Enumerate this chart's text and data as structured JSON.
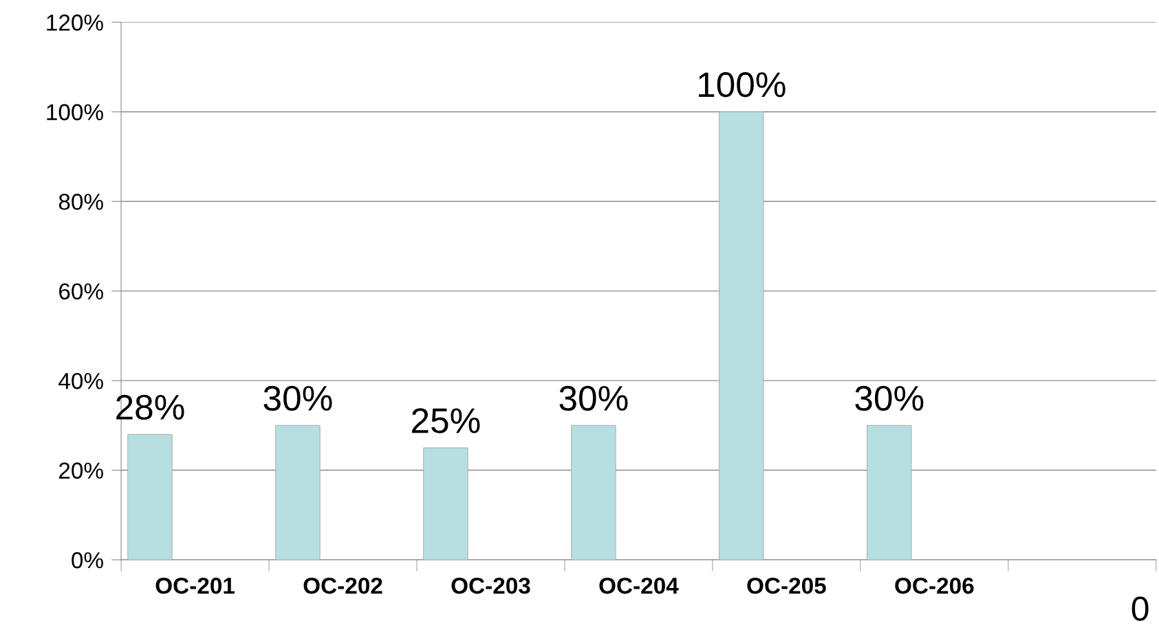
{
  "chart_data": {
    "type": "bar",
    "categories": [
      "OC-201",
      "OC-202",
      "OC-203",
      "OC-204",
      "OC-205",
      "OC-206",
      null
    ],
    "values": [
      28,
      30,
      25,
      30,
      100,
      30,
      null
    ],
    "value_labels": [
      "28%",
      "30%",
      "25%",
      "30%",
      "100%",
      "30%",
      null
    ],
    "color": "#b7dee1",
    "ylim": [
      0,
      120
    ],
    "yticks": [
      {
        "value": 0,
        "label": "0%"
      },
      {
        "value": 20,
        "label": "20%"
      },
      {
        "value": 40,
        "label": "40%"
      },
      {
        "value": 60,
        "label": "60%"
      },
      {
        "value": 80,
        "label": "80%"
      },
      {
        "value": 100,
        "label": "100%"
      },
      {
        "value": 120,
        "label": "120%"
      }
    ],
    "grid": "y",
    "annotations": [
      "0"
    ]
  }
}
